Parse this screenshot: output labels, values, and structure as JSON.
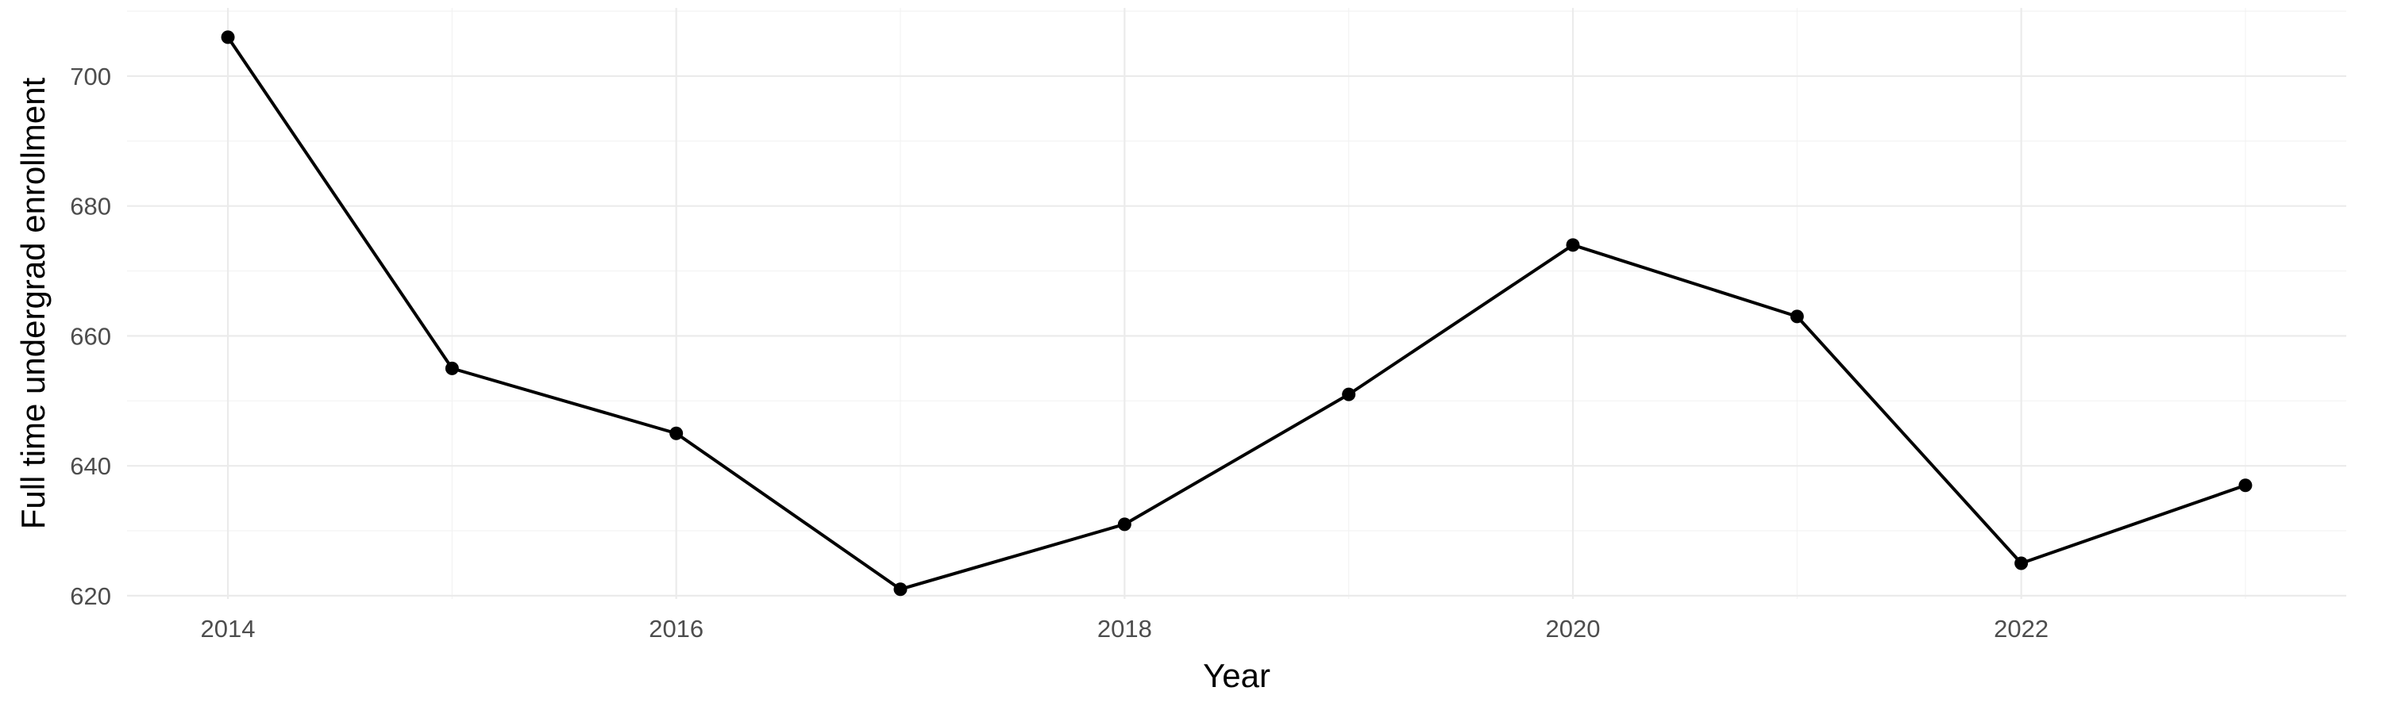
{
  "chart_data": {
    "type": "line",
    "title": "",
    "xlabel": "Year",
    "ylabel": "Full time undergrad enrollment",
    "x": [
      2014,
      2015,
      2016,
      2017,
      2018,
      2019,
      2020,
      2021,
      2022,
      2023
    ],
    "series": [
      {
        "values": [
          706,
          655,
          645,
          621,
          631,
          651,
          674,
          663,
          625,
          637
        ],
        "color": "#000000"
      }
    ],
    "xlim": [
      2013.55,
      2023.45
    ],
    "ylim": [
      619.5,
      710.5
    ],
    "x_major_ticks": [
      2014,
      2016,
      2018,
      2020,
      2022
    ],
    "x_minor_ticks": [
      2015,
      2017,
      2019,
      2021,
      2023
    ],
    "y_major_ticks": [
      620,
      640,
      660,
      680,
      700
    ],
    "y_minor_ticks": [
      630,
      650,
      670,
      690,
      710
    ],
    "x_tick_labels": [
      "2014",
      "2016",
      "2018",
      "2020",
      "2022"
    ],
    "y_tick_labels": [
      "620",
      "640",
      "660",
      "680",
      "700"
    ],
    "grid": true,
    "legend": "none",
    "colors": {
      "line": "#000000",
      "grid_major": "#ebebeb",
      "grid_minor": "#f2f2f2",
      "tick_text": "#4d4d4d"
    }
  }
}
